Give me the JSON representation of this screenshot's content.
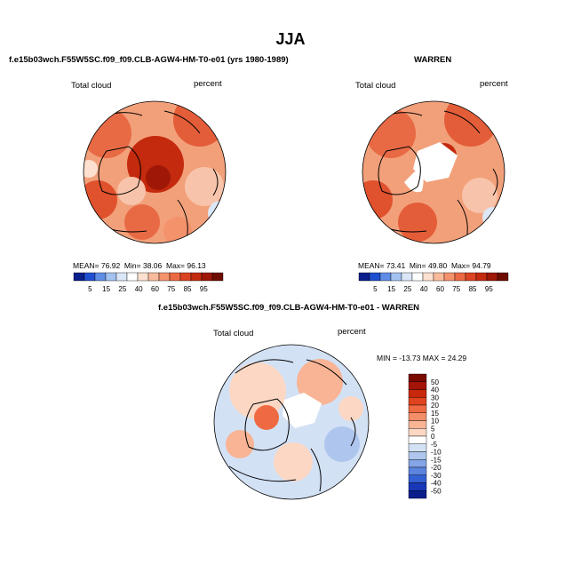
{
  "title": "JJA",
  "panels": {
    "left": {
      "title": "f.e15b03wch.F55W5SC.f09_f09.CLB-AGW4-HM-T0-e01 (yrs 1980-1989)",
      "variable": "Total cloud",
      "units": "percent",
      "stats": {
        "mean_label": "MEAN=",
        "mean": "76.92",
        "min_label": "Min=",
        "min": "38.06",
        "max_label": "Max=",
        "max": "96.13"
      }
    },
    "right": {
      "title": "WARREN",
      "variable": "Total cloud",
      "units": "percent",
      "stats": {
        "mean_label": "MEAN=",
        "mean": "73.41",
        "min_label": "Min=",
        "min": "49.80",
        "max_label": "Max=",
        "max": "94.79"
      }
    },
    "diff": {
      "title": "f.e15b03wch.F55W5SC.f09_f09.CLB-AGW4-HM-T0-e01 - WARREN",
      "variable": "Total cloud",
      "units": "percent",
      "stats_text": "MIN = -13.73 MAX =  24.29"
    }
  },
  "abs_colorbar": {
    "labels": [
      "5",
      "15",
      "25",
      "40",
      "60",
      "75",
      "85",
      "95"
    ],
    "colors": [
      "#0a1e8c",
      "#1f4fd1",
      "#5f8de6",
      "#a3c2f0",
      "#dbe7f7",
      "#ffffff",
      "#fde0cf",
      "#f9bb9b",
      "#f4926b",
      "#ec6a43",
      "#dc4322",
      "#c42a0e",
      "#9e1707",
      "#6e0b00"
    ]
  },
  "diff_colorbar": {
    "labels": [
      "50",
      "40",
      "30",
      "20",
      "15",
      "10",
      "5",
      "0",
      "-5",
      "-10",
      "-15",
      "-20",
      "-30",
      "-40",
      "-50"
    ],
    "colors": [
      "#7a0a00",
      "#a51406",
      "#c8270b",
      "#e0431f",
      "#ef6a42",
      "#f48e68",
      "#f8b495",
      "#fcd8c4",
      "#ffffff",
      "#d3e1f5",
      "#aec6ee",
      "#84a6e6",
      "#5a84de",
      "#3360d2",
      "#1838b8",
      "#0a1e8c"
    ]
  }
}
